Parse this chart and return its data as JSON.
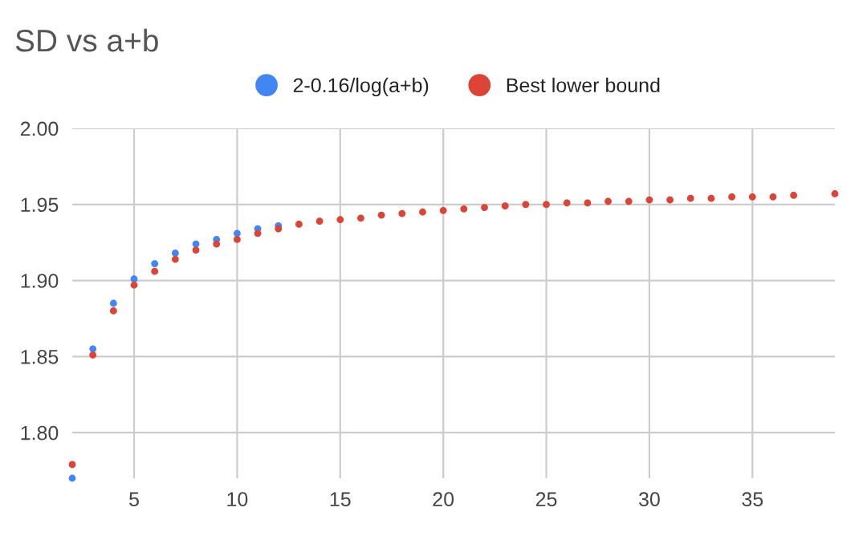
{
  "chart_data": {
    "type": "scatter",
    "title": "SD vs a+b",
    "x": [
      2,
      3,
      4,
      5,
      6,
      7,
      8,
      9,
      10,
      11,
      12,
      13,
      14,
      15,
      16,
      17,
      18,
      19,
      20,
      21,
      22,
      23,
      24,
      25,
      26,
      27,
      28,
      29,
      30,
      31,
      32,
      33,
      34,
      35,
      36,
      37,
      39
    ],
    "series": [
      {
        "name": "2-0.16/log(a+b)",
        "color": "#4285f4",
        "values": [
          1.77,
          1.855,
          1.885,
          1.901,
          1.911,
          1.918,
          1.924,
          1.927,
          1.931,
          1.934,
          1.936,
          null,
          null,
          null,
          null,
          null,
          null,
          null,
          null,
          null,
          null,
          null,
          null,
          null,
          null,
          null,
          null,
          null,
          null,
          null,
          null,
          null,
          null,
          null,
          null,
          null,
          null
        ]
      },
      {
        "name": "Best lower bound",
        "color": "#db4437",
        "values": [
          1.779,
          1.851,
          1.88,
          1.897,
          1.906,
          1.914,
          1.92,
          1.924,
          1.927,
          1.931,
          1.934,
          1.937,
          1.939,
          1.94,
          1.941,
          1.943,
          1.944,
          1.945,
          1.946,
          1.947,
          1.948,
          1.949,
          1.95,
          1.95,
          1.951,
          1.951,
          1.952,
          1.952,
          1.953,
          1.953,
          1.954,
          1.954,
          1.955,
          1.955,
          1.955,
          1.956,
          1.957
        ]
      }
    ],
    "xlim": [
      2,
      39
    ],
    "xticks": [
      5,
      10,
      15,
      20,
      25,
      30,
      35
    ],
    "ylim": [
      1.77,
      2.0
    ],
    "yticks": [
      {
        "value": 1.8,
        "label": "1.80"
      },
      {
        "value": 1.85,
        "label": "1.85"
      },
      {
        "value": 1.9,
        "label": "1.90"
      },
      {
        "value": 1.95,
        "label": "1.95"
      },
      {
        "value": 2.0,
        "label": "2.00"
      }
    ],
    "grid": true,
    "legend": "top",
    "marker": "circle"
  }
}
